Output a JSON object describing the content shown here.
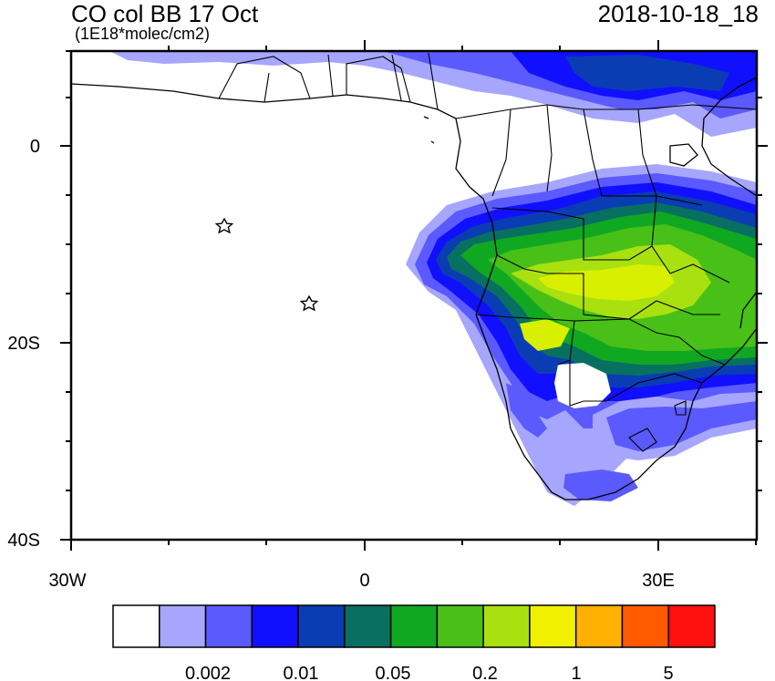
{
  "header": {
    "title": "CO col BB 17 Oct",
    "units": "(1E18*molec/cm2)",
    "datetime": "2018-10-18_18"
  },
  "axes": {
    "lat_labels": [
      "0",
      "20S",
      "40S"
    ],
    "lon_labels": [
      "30W",
      "0",
      "30E"
    ]
  },
  "colorbar": {
    "colors": [
      "#ffffff",
      "#a6a6ff",
      "#5a5aff",
      "#1010ff",
      "#0a3cb4",
      "#087060",
      "#10a820",
      "#48c018",
      "#a8e010",
      "#f0f000",
      "#ffb000",
      "#ff5a00",
      "#ff1010"
    ],
    "labels": [
      "0.002",
      "0.01",
      "0.05",
      "0.2",
      "1",
      "5"
    ]
  },
  "markers": [
    {
      "name": "star-ascension",
      "symbol": "star"
    },
    {
      "name": "star-st-helena",
      "symbol": "star"
    }
  ]
}
